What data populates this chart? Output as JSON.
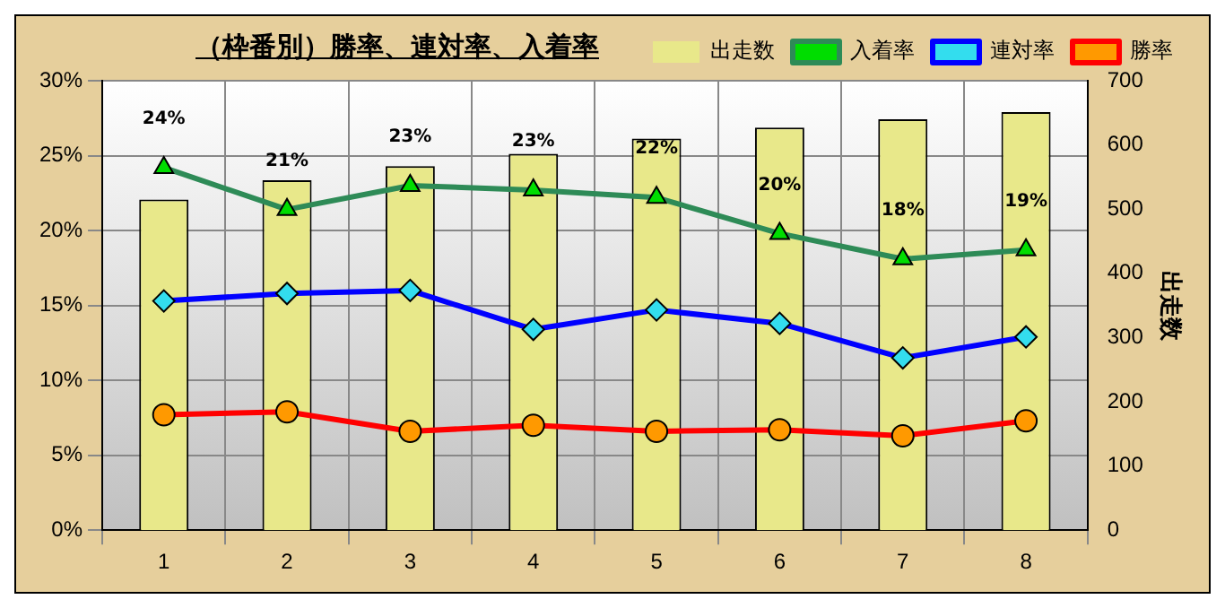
{
  "chart_data": {
    "type": "bar",
    "title": "（枠番別）勝率、連対率、入着率",
    "y2label": "出走数",
    "categories": [
      "1",
      "2",
      "3",
      "4",
      "5",
      "6",
      "7",
      "8"
    ],
    "series": [
      {
        "name": "出走数",
        "axis": "y2",
        "color": "#e8e88a",
        "values": [
          515,
          545,
          567,
          586,
          610,
          627,
          640,
          651
        ]
      },
      {
        "name": "入着率",
        "type": "line",
        "color": "#2e8b57",
        "marker": "triangle",
        "values": [
          24.2,
          21.4,
          23.0,
          22.7,
          22.2,
          19.8,
          18.1,
          18.7
        ],
        "value_labels": [
          "24%",
          "21%",
          "23%",
          "23%",
          "22%",
          "20%",
          "18%",
          "19%"
        ]
      },
      {
        "name": "連対率",
        "type": "line",
        "color": "#0000ff",
        "marker": "diamond",
        "values": [
          15.3,
          15.8,
          16.0,
          13.4,
          14.7,
          13.8,
          11.5,
          12.9
        ]
      },
      {
        "name": "勝率",
        "type": "line",
        "color": "#ff0000",
        "marker": "circle",
        "values": [
          7.7,
          7.9,
          6.6,
          7.0,
          6.6,
          6.7,
          6.3,
          7.3
        ]
      }
    ],
    "ylim": [
      0,
      30
    ],
    "yticks": [
      {
        "value": 0,
        "label": "0%"
      },
      {
        "value": 5,
        "label": "5%"
      },
      {
        "value": 10,
        "label": "10%"
      },
      {
        "value": 15,
        "label": "15%"
      },
      {
        "value": 20,
        "label": "20%"
      },
      {
        "value": 25,
        "label": "25%"
      },
      {
        "value": 30,
        "label": "30%"
      }
    ],
    "y2lim": [
      0,
      700
    ],
    "y2ticks": [
      0,
      100,
      200,
      300,
      400,
      500,
      600,
      700
    ],
    "grid": true,
    "legend": "top right"
  }
}
